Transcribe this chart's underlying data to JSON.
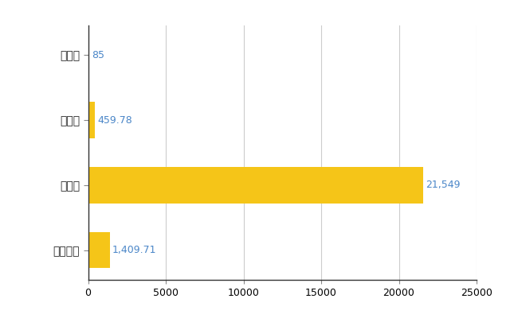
{
  "categories": [
    "天塩町",
    "県平均",
    "県最大",
    "全国平均"
  ],
  "values": [
    85,
    459.78,
    21549,
    1409.71
  ],
  "bar_colors": [
    "#8b0000",
    "#f5c518",
    "#f5c518",
    "#f5c518"
  ],
  "labels": [
    "85",
    "459.78",
    "21,549",
    "1,409.71"
  ],
  "xlim": [
    0,
    25000
  ],
  "xticks": [
    0,
    5000,
    10000,
    15000,
    20000,
    25000
  ],
  "background_color": "#ffffff",
  "grid_color": "#cccccc",
  "bar_height": 0.55,
  "label_fontsize": 9,
  "tick_fontsize": 9,
  "ylabel_fontsize": 10,
  "label_color": "#4a86c8",
  "figsize": [
    6.5,
    4.0
  ],
  "dpi": 100
}
